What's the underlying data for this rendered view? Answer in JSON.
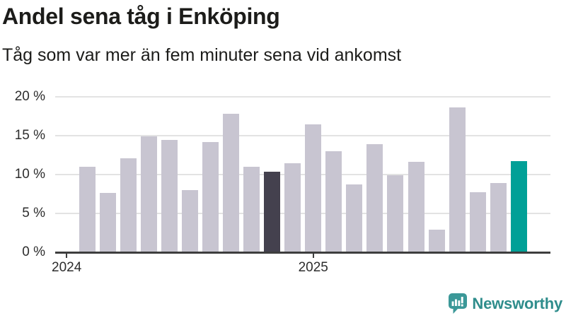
{
  "header": {
    "title": "Andel sena tåg i Enköping",
    "subtitle": "Tåg som var mer än fem minuter sena vid ankomst"
  },
  "chart_data": {
    "type": "bar",
    "title": "Andel sena tåg i Enköping",
    "subtitle": "Tåg som var mer än fem minuter sena vid ankomst",
    "unit": "%",
    "ylim": [
      0,
      20
    ],
    "grid": true,
    "legend": false,
    "values": [
      11.0,
      7.6,
      12.1,
      14.9,
      14.5,
      8.0,
      14.2,
      17.8,
      11.0,
      10.4,
      11.5,
      16.5,
      13.0,
      8.7,
      13.9,
      9.9,
      11.6,
      2.9,
      18.6,
      7.7,
      8.9,
      11.7
    ],
    "highlight_dark_index": 9,
    "highlight_accent_index": 21,
    "yticks": [
      {
        "value": 0,
        "label": "0 %"
      },
      {
        "value": 5,
        "label": "5 %"
      },
      {
        "value": 10,
        "label": "10 %"
      },
      {
        "value": 15,
        "label": "15 %"
      },
      {
        "value": 20,
        "label": "20 %"
      }
    ],
    "xticks": [
      {
        "label": "2024",
        "bar_index": -1
      },
      {
        "label": "2025",
        "bar_index": 11
      }
    ],
    "colors": {
      "bar": "#c8c5d1",
      "dark": "#44414e",
      "accent": "#00a097",
      "grid": "#e3e3e3",
      "axis": "#3e3e3e"
    }
  },
  "footer": {
    "logo_text": "Newsworthy",
    "logo_color": "#2f8d8c",
    "logo_icon_color": "#3b9898"
  }
}
